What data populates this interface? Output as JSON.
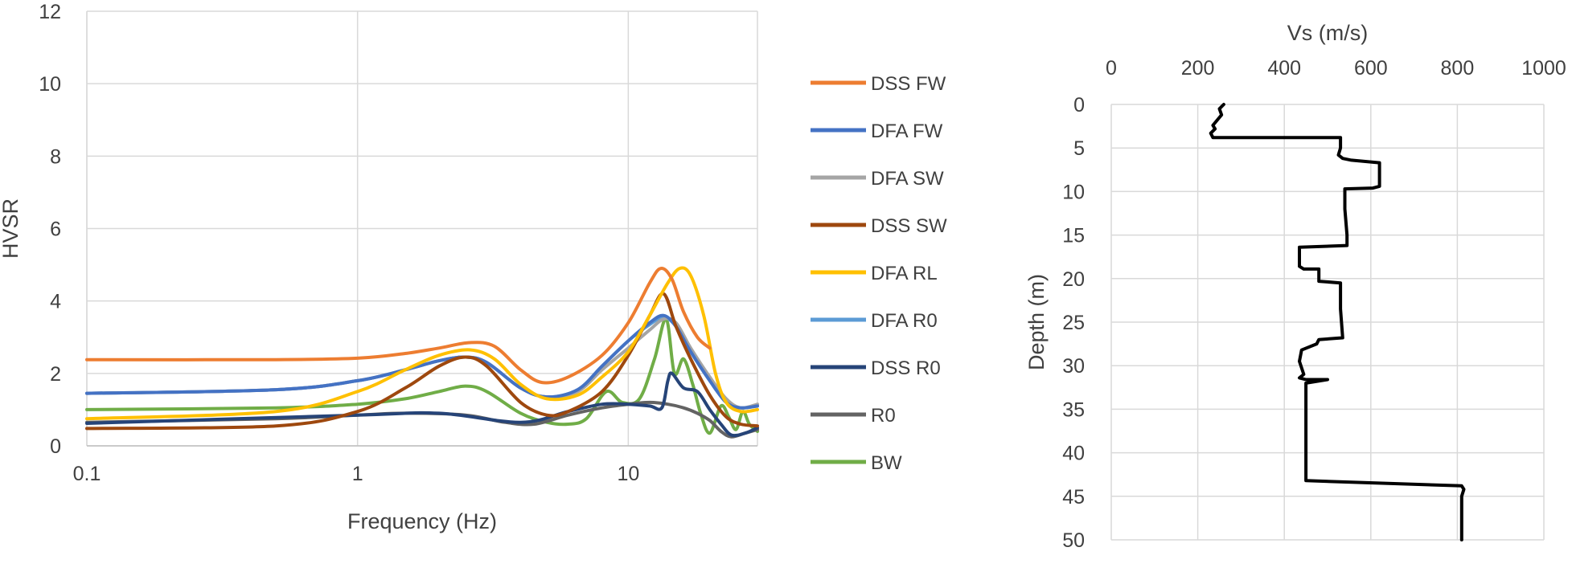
{
  "chart_data": [
    {
      "type": "line",
      "xlabel": "Frequency (Hz)",
      "ylabel": "HVSR",
      "xscale": "log",
      "xlim": [
        0.1,
        30
      ],
      "ylim": [
        0,
        12
      ],
      "xticks": [
        "0.1",
        "1",
        "10"
      ],
      "yticks": [
        "0",
        "2",
        "4",
        "6",
        "8",
        "10",
        "12"
      ],
      "grid": true,
      "legend_position": "right",
      "series": [
        {
          "name": "DSS FW",
          "color": "#ED7D31",
          "x": [
            0.1,
            0.5,
            1,
            1.5,
            2,
            2.6,
            3.2,
            4,
            4.8,
            6,
            8,
            10,
            12,
            13.2,
            14.5,
            16,
            18,
            20
          ],
          "y": [
            2.38,
            2.38,
            2.42,
            2.55,
            2.7,
            2.85,
            2.75,
            2.1,
            1.75,
            1.9,
            2.5,
            3.4,
            4.5,
            4.9,
            4.6,
            3.7,
            3.0,
            2.7
          ]
        },
        {
          "name": "DFA FW",
          "color": "#4472C4",
          "x": [
            0.1,
            0.5,
            1,
            1.5,
            2,
            2.5,
            3,
            4,
            5,
            6.5,
            8,
            10,
            12,
            13.5,
            15,
            17,
            20,
            23,
            26,
            30
          ],
          "y": [
            1.45,
            1.55,
            1.8,
            2.1,
            2.35,
            2.45,
            2.3,
            1.6,
            1.35,
            1.55,
            2.2,
            2.9,
            3.4,
            3.6,
            3.3,
            2.6,
            1.8,
            1.2,
            1.05,
            1.1
          ]
        },
        {
          "name": "DFA SW",
          "color": "#A5A5A5",
          "x": [
            0.1,
            0.5,
            1,
            1.5,
            2,
            2.5,
            3,
            4,
            5,
            6.5,
            8,
            10,
            12,
            13.5,
            15,
            17,
            20,
            23,
            26,
            30
          ],
          "y": [
            1.45,
            1.55,
            1.8,
            2.1,
            2.35,
            2.45,
            2.3,
            1.6,
            1.35,
            1.5,
            2.1,
            2.7,
            3.2,
            3.5,
            3.4,
            2.7,
            1.9,
            1.3,
            1.05,
            1.15
          ]
        },
        {
          "name": "DSS SW",
          "color": "#9E480E",
          "x": [
            0.1,
            0.5,
            1,
            1.5,
            2,
            2.5,
            3,
            4,
            5,
            6,
            8,
            10,
            12,
            13.5,
            15,
            17,
            20,
            23,
            26,
            30
          ],
          "y": [
            0.48,
            0.55,
            0.95,
            1.6,
            2.2,
            2.45,
            2.2,
            1.2,
            0.85,
            0.95,
            1.5,
            2.5,
            3.6,
            4.2,
            3.3,
            2.4,
            1.4,
            0.8,
            0.6,
            0.55
          ]
        },
        {
          "name": "DFA RL",
          "color": "#FFC000",
          "x": [
            0.1,
            0.5,
            1,
            1.5,
            2,
            2.6,
            3.2,
            4,
            5,
            6.5,
            8,
            10,
            12,
            14,
            15.5,
            17,
            19,
            21,
            23,
            26,
            30
          ],
          "y": [
            0.75,
            0.95,
            1.5,
            2.1,
            2.5,
            2.65,
            2.4,
            1.7,
            1.3,
            1.4,
            1.9,
            2.6,
            3.6,
            4.5,
            4.9,
            4.7,
            3.6,
            2.0,
            1.2,
            0.95,
            1.0
          ]
        },
        {
          "name": "DFA R0",
          "color": "#5B9BD5",
          "x": [
            0.1,
            0.5,
            1,
            1.5,
            2,
            2.5,
            3,
            4,
            5,
            6.5,
            8,
            10,
            12,
            13.5,
            15,
            17,
            20,
            23,
            26,
            30
          ],
          "y": [
            1.45,
            1.55,
            1.8,
            2.1,
            2.35,
            2.45,
            2.3,
            1.6,
            1.35,
            1.55,
            2.2,
            2.9,
            3.35,
            3.55,
            3.3,
            2.6,
            1.8,
            1.2,
            1.05,
            1.1
          ]
        },
        {
          "name": "DSS R0",
          "color": "#264478",
          "x": [
            0.1,
            1,
            2,
            4,
            6,
            8,
            10,
            12,
            13.3,
            14,
            14.5,
            16,
            18,
            20,
            22,
            24,
            27,
            30
          ],
          "y": [
            0.62,
            0.85,
            0.9,
            0.65,
            0.95,
            1.15,
            1.15,
            1.1,
            1.05,
            1.8,
            2.0,
            1.6,
            1.5,
            1.0,
            0.6,
            0.3,
            0.35,
            0.5
          ]
        },
        {
          "name": "R0",
          "color": "#636363",
          "x": [
            0.1,
            0.5,
            1,
            1.5,
            2.5,
            3.5,
            4.5,
            6,
            8,
            10,
            12,
            14,
            16,
            18,
            20,
            22,
            24,
            27,
            30
          ],
          "y": [
            0.65,
            0.75,
            0.85,
            0.9,
            0.85,
            0.65,
            0.6,
            0.85,
            1.05,
            1.15,
            1.2,
            1.15,
            1.05,
            0.9,
            0.7,
            0.4,
            0.25,
            0.35,
            0.45
          ]
        },
        {
          "name": "BW",
          "color": "#70AD47",
          "x": [
            0.1,
            0.5,
            1,
            1.5,
            2,
            2.5,
            3,
            4,
            5,
            6,
            7,
            8.3,
            9.5,
            11,
            12.5,
            13.8,
            14.8,
            16,
            17.3,
            18.5,
            20,
            22,
            23.5,
            25,
            26.5,
            28,
            30
          ],
          "y": [
            1.0,
            1.05,
            1.15,
            1.3,
            1.5,
            1.65,
            1.5,
            0.9,
            0.65,
            0.6,
            0.75,
            1.5,
            1.2,
            1.3,
            2.4,
            3.5,
            2.0,
            2.4,
            1.7,
            0.9,
            0.35,
            1.1,
            0.8,
            0.45,
            0.95,
            0.6,
            0.4
          ]
        }
      ]
    },
    {
      "type": "line",
      "xlabel": "Vs (m/s)",
      "ylabel": "Depth (m)",
      "xlim": [
        0,
        1000
      ],
      "ylim": [
        0,
        50
      ],
      "y_inverted": true,
      "x_axis_position": "top",
      "xticks": [
        "0",
        "200",
        "400",
        "600",
        "800",
        "1000"
      ],
      "yticks": [
        "0",
        "5",
        "10",
        "15",
        "20",
        "25",
        "30",
        "35",
        "40",
        "45",
        "50"
      ],
      "grid": true,
      "series": [
        {
          "color": "#000000",
          "x": [
            260,
            250,
            255,
            245,
            235,
            240,
            230,
            235,
            530,
            530,
            525,
            535,
            555,
            620,
            620,
            605,
            540,
            540,
            545,
            545,
            435,
            435,
            445,
            480,
            480,
            530,
            530,
            535,
            480,
            475,
            440,
            435,
            445,
            435,
            450,
            500,
            450,
            450,
            450,
            450,
            810,
            815,
            810,
            810
          ],
          "y": [
            0,
            0.5,
            1.2,
            1.8,
            2.4,
            2.8,
            3.3,
            3.8,
            3.8,
            5.0,
            5.8,
            6.2,
            6.4,
            6.7,
            9.4,
            9.6,
            9.7,
            12,
            15,
            16.2,
            16.4,
            18.6,
            18.9,
            18.9,
            20.3,
            20.5,
            23.5,
            26.8,
            27,
            27.5,
            28.2,
            29.5,
            31,
            31.4,
            31.6,
            31.6,
            32,
            35,
            40,
            43.2,
            43.8,
            44.2,
            45,
            50
          ]
        }
      ]
    }
  ]
}
